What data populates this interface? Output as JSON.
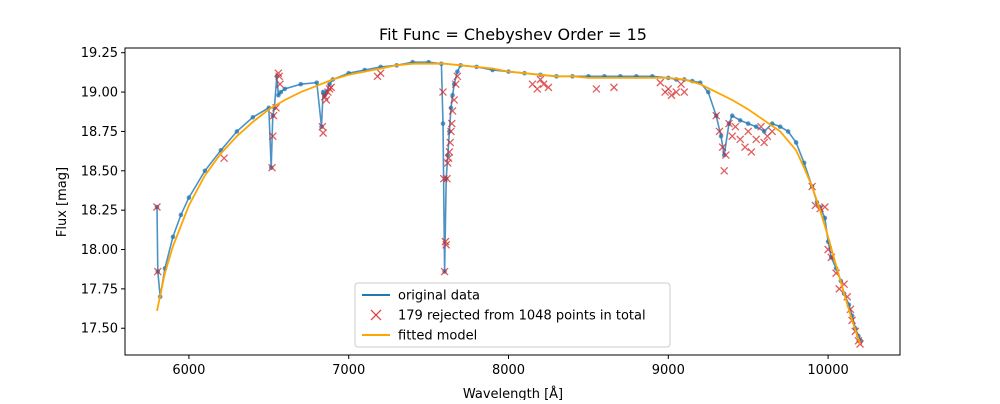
{
  "chart_data": {
    "type": "line",
    "title": "Fit Func = Chebyshev  Order = 15",
    "xlabel": "Wavelength [Å]",
    "ylabel": "Flux [mag]",
    "xlim": [
      5600,
      10450
    ],
    "ylim": [
      17.33,
      19.28
    ],
    "xticks": [
      6000,
      7000,
      8000,
      9000,
      10000
    ],
    "yticks": [
      17.5,
      17.75,
      18.0,
      18.25,
      18.5,
      18.75,
      19.0,
      19.25
    ],
    "xtick_labels": [
      "6000",
      "7000",
      "8000",
      "9000",
      "10000"
    ],
    "ytick_labels": [
      "17.50",
      "17.75",
      "18.00",
      "18.25",
      "18.50",
      "18.75",
      "19.00",
      "19.25"
    ],
    "grid": false,
    "legend_position": "lower center",
    "colors": {
      "original": "#1f77b4",
      "rejected": "#d62728",
      "model": "#ffa500"
    },
    "series": [
      {
        "name": "original data",
        "style": "line+points",
        "x": [
          5800,
          5805,
          5820,
          5850,
          5900,
          5950,
          6000,
          6100,
          6200,
          6300,
          6400,
          6500,
          6515,
          6525,
          6535,
          6550,
          6560,
          6575,
          6600,
          6700,
          6800,
          6830,
          6840,
          6850,
          6860,
          6880,
          6900,
          7000,
          7100,
          7200,
          7300,
          7400,
          7500,
          7580,
          7590,
          7600,
          7610,
          7620,
          7630,
          7640,
          7650,
          7660,
          7680,
          7700,
          7800,
          7900,
          8000,
          8100,
          8200,
          8300,
          8400,
          8500,
          8600,
          8700,
          8800,
          8900,
          9000,
          9050,
          9100,
          9150,
          9200,
          9250,
          9300,
          9330,
          9350,
          9380,
          9400,
          9450,
          9500,
          9550,
          9600,
          9650,
          9700,
          9750,
          9800,
          9850,
          9900,
          9930,
          9950,
          9980,
          10000,
          10020,
          10050,
          10080,
          10100,
          10130,
          10150,
          10170,
          10190,
          10205
        ],
        "y": [
          18.27,
          17.86,
          17.7,
          17.88,
          18.08,
          18.22,
          18.33,
          18.5,
          18.63,
          18.75,
          18.84,
          18.9,
          18.52,
          18.85,
          18.9,
          19.1,
          18.98,
          19.0,
          19.02,
          19.05,
          19.06,
          18.78,
          19.0,
          18.98,
          19.0,
          19.05,
          19.08,
          19.12,
          19.14,
          19.16,
          19.17,
          19.19,
          19.19,
          19.18,
          18.8,
          17.86,
          18.45,
          18.6,
          18.75,
          18.9,
          18.98,
          19.05,
          19.13,
          19.17,
          19.16,
          19.14,
          19.13,
          19.12,
          19.11,
          19.1,
          19.1,
          19.1,
          19.1,
          19.1,
          19.1,
          19.1,
          19.09,
          19.08,
          19.08,
          19.07,
          19.06,
          19.0,
          18.85,
          18.72,
          18.6,
          18.8,
          18.85,
          18.82,
          18.8,
          18.78,
          18.75,
          18.8,
          18.78,
          18.75,
          18.68,
          18.55,
          18.4,
          18.3,
          18.27,
          18.2,
          18.05,
          17.95,
          17.88,
          17.8,
          17.72,
          17.65,
          17.58,
          17.5,
          17.45,
          17.42
        ]
      },
      {
        "name": "179 rejected from 1048 points in total",
        "style": "x-markers",
        "x": [
          5800,
          5805,
          6220,
          6520,
          6525,
          6530,
          6545,
          6560,
          6565,
          6570,
          6835,
          6840,
          6850,
          6860,
          6870,
          6880,
          6890,
          7180,
          7200,
          7590,
          7595,
          7600,
          7605,
          7610,
          7615,
          7620,
          7625,
          7630,
          7635,
          7640,
          7645,
          7650,
          7660,
          7670,
          7680,
          8150,
          8180,
          8200,
          8220,
          8250,
          8550,
          8660,
          8950,
          8980,
          9000,
          9020,
          9050,
          9080,
          9100,
          9300,
          9320,
          9340,
          9350,
          9360,
          9380,
          9400,
          9420,
          9450,
          9480,
          9500,
          9520,
          9550,
          9580,
          9600,
          9620,
          9650,
          9900,
          9920,
          9950,
          9980,
          10000,
          10020,
          10050,
          10070,
          10100,
          10120,
          10140,
          10150,
          10170,
          10190,
          10200
        ],
        "y": [
          18.27,
          17.86,
          18.58,
          18.52,
          18.72,
          18.85,
          18.9,
          19.12,
          19.1,
          19.05,
          18.78,
          18.74,
          18.97,
          18.95,
          19.0,
          19.02,
          19.03,
          19.1,
          19.12,
          19.0,
          18.45,
          17.86,
          18.05,
          18.03,
          18.45,
          18.55,
          18.58,
          18.62,
          18.68,
          18.75,
          18.8,
          18.88,
          18.95,
          19.05,
          19.1,
          19.05,
          19.02,
          19.08,
          19.05,
          19.03,
          19.02,
          19.03,
          19.06,
          19.0,
          19.02,
          18.98,
          19.0,
          19.05,
          19.0,
          18.85,
          18.75,
          18.65,
          18.5,
          18.6,
          18.8,
          18.72,
          18.78,
          18.7,
          18.65,
          18.75,
          18.62,
          18.7,
          18.78,
          18.68,
          18.72,
          18.75,
          18.4,
          18.28,
          18.26,
          18.27,
          18.0,
          17.95,
          17.85,
          17.75,
          17.78,
          17.7,
          17.62,
          17.55,
          17.48,
          17.42,
          17.4
        ]
      },
      {
        "name": "fitted model",
        "style": "line",
        "x": [
          5800,
          5850,
          5900,
          6000,
          6100,
          6200,
          6300,
          6400,
          6500,
          6600,
          6700,
          6800,
          6900,
          7000,
          7100,
          7200,
          7300,
          7400,
          7500,
          7600,
          7700,
          7800,
          7900,
          8000,
          8100,
          8200,
          8300,
          8400,
          8500,
          8600,
          8700,
          8800,
          8900,
          9000,
          9100,
          9200,
          9300,
          9400,
          9500,
          9600,
          9700,
          9800,
          9850,
          9900,
          9950,
          10000,
          10050,
          10100,
          10150,
          10200
        ],
        "y": [
          17.61,
          17.85,
          18.02,
          18.28,
          18.47,
          18.61,
          18.72,
          18.81,
          18.89,
          18.95,
          19.0,
          19.04,
          19.08,
          19.11,
          19.13,
          19.15,
          19.17,
          19.18,
          19.18,
          19.18,
          19.17,
          19.16,
          19.15,
          19.13,
          19.12,
          19.11,
          19.1,
          19.1,
          19.09,
          19.09,
          19.09,
          19.09,
          19.09,
          19.09,
          19.08,
          19.05,
          19.0,
          18.95,
          18.89,
          18.82,
          18.75,
          18.63,
          18.52,
          18.4,
          18.25,
          18.08,
          17.9,
          17.72,
          17.55,
          17.4
        ]
      }
    ]
  }
}
